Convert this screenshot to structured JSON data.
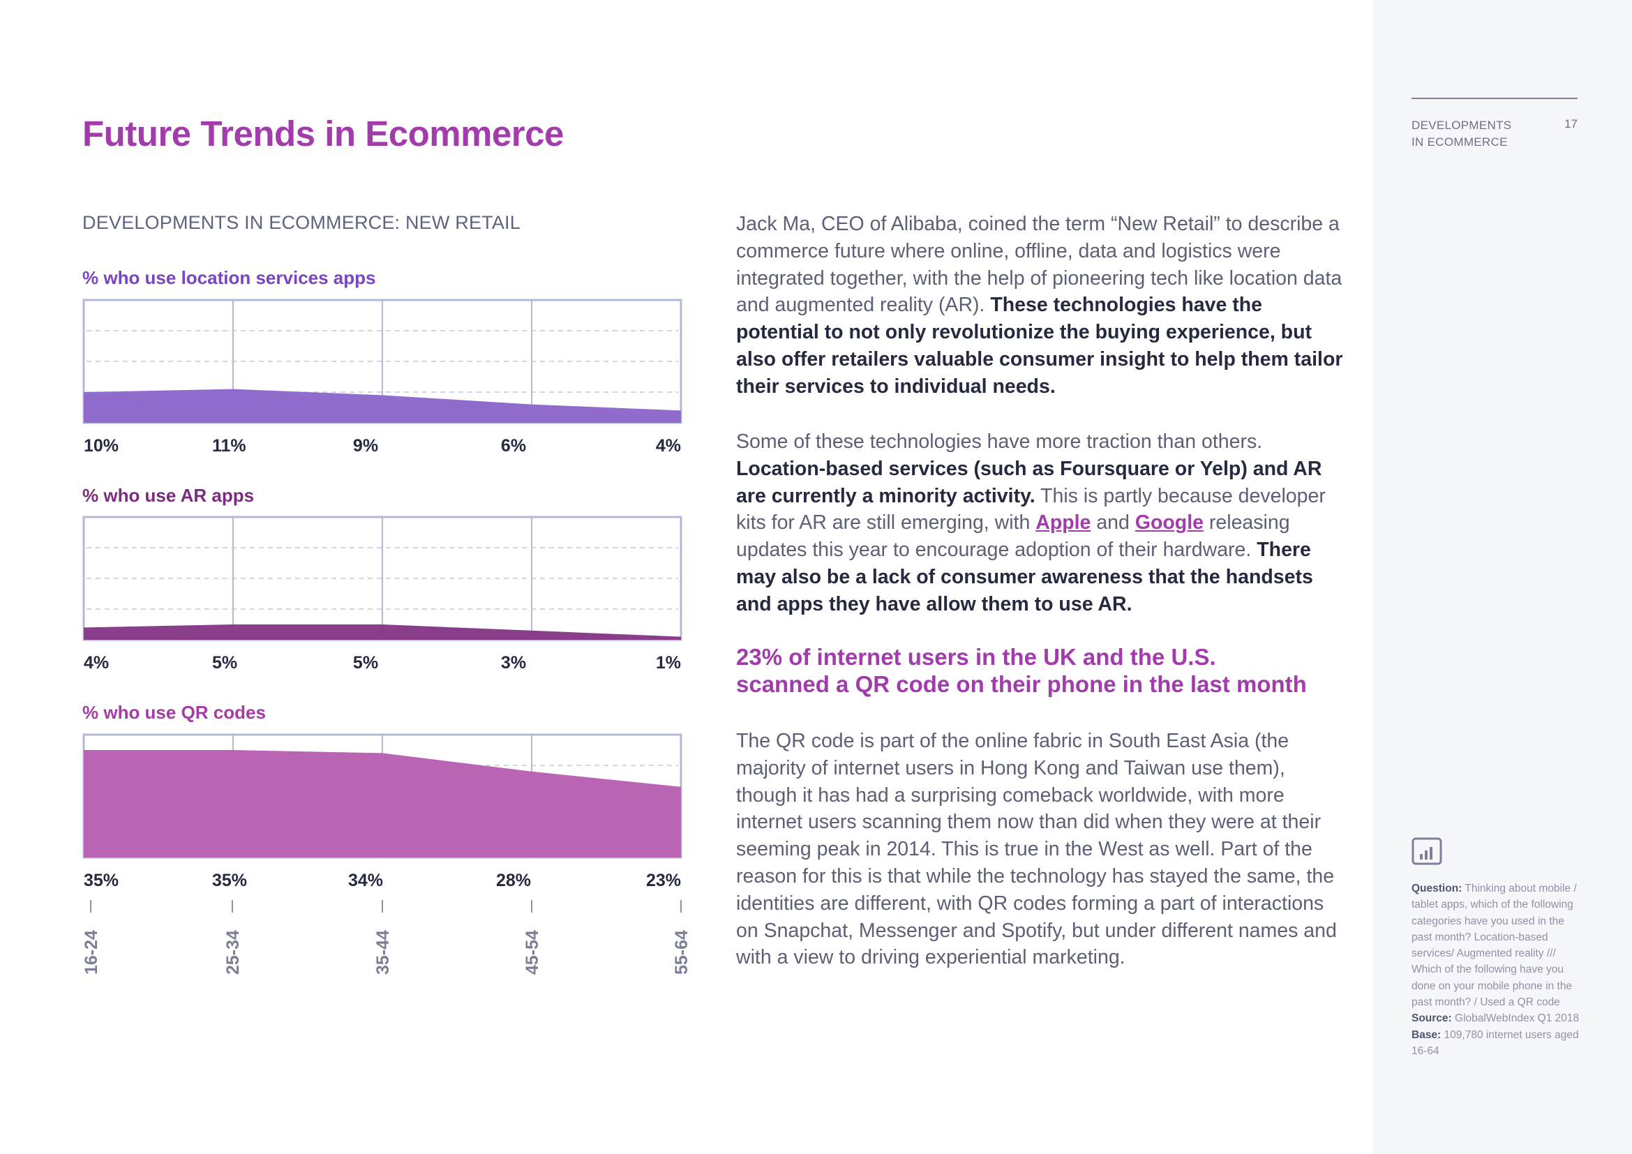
{
  "page": {
    "title": "Future Trends in Ecommerce",
    "section_heading": "DEVELOPMENTS IN ECOMMERCE: NEW RETAIL",
    "sidebar": {
      "section_line1": "DEVELOPMENTS",
      "section_line2": "IN ECOMMERCE",
      "page_number": "17"
    }
  },
  "body": {
    "p1_a": "Jack Ma, CEO of Alibaba, coined the term “New Retail” to describe a commerce future where online, offline, data and logistics were integrated together, with the help of pioneering tech like location data and augmented reality (AR).",
    "p1_b": "These technologies have the potential to not only revolutionize the buying experience, but also offer retailers valuable consumer insight to help them tailor their services to individual needs.",
    "p2_a": "Some of these technologies have more traction than others.",
    "p2_b": "Location-based services (such as Foursquare or Yelp) and AR are currently a minority activity.",
    "p2_c": "This is partly because developer kits for AR are still emerging, with",
    "link_apple": "Apple",
    "p2_d": "and",
    "link_google": "Google",
    "p2_e": "releasing updates this year to encourage adoption of their hardware.",
    "p2_f": "There may also be a lack of consumer awareness that the handsets and apps they have allow them to use AR.",
    "pull_quote_line1": "23% of internet users in the UK and the U.S.",
    "pull_quote_line2": "scanned a QR code on their phone in the last month",
    "p3": "The QR code is part of the online fabric in South East Asia (the majority of internet users in Hong Kong and Taiwan use them), though it has had a surprising comeback worldwide, with more internet users scanning them now than did when they were at their seeming peak in 2014. This is true in the West as well. Part of the reason for this is that while the technology has stayed the same, the identities are different, with QR codes forming a part of interactions on Snapchat, Messenger and Spotify, but under different names and with a view to driving experiential marketing."
  },
  "note": {
    "question_label": "Question:",
    "question_text": "Thinking about mobile / tablet apps, which of the following categories have you used in the past month? Location-based services/ Augmented reality /// Which of the following have you done on your mobile phone in the past month? / Used a QR code",
    "source_label": "Source:",
    "source_text": "GlobalWebIndex Q1 2018",
    "base_label": "Base:",
    "base_text": "109,780 internet users aged 16-64"
  },
  "colors": {
    "brand": "#a23bab",
    "location": "#8e6acc",
    "ar": "#863a86",
    "qr": "#b961b2"
  },
  "chart_data": [
    {
      "type": "area",
      "title": "% who use location services apps",
      "categories": [
        "16-24",
        "25-34",
        "35-44",
        "45-54",
        "55-64"
      ],
      "values": [
        10,
        11,
        9,
        6,
        4
      ],
      "value_labels": [
        "10%",
        "11%",
        "9%",
        "6%",
        "4%"
      ],
      "unit": "%",
      "ylim": [
        0,
        40
      ],
      "grid": true
    },
    {
      "type": "area",
      "title": "% who use AR apps",
      "categories": [
        "16-24",
        "25-34",
        "35-44",
        "45-54",
        "55-64"
      ],
      "values": [
        4,
        5,
        5,
        3,
        1
      ],
      "value_labels": [
        "4%",
        "5%",
        "5%",
        "3%",
        "1%"
      ],
      "unit": "%",
      "ylim": [
        0,
        40
      ],
      "grid": true
    },
    {
      "type": "area",
      "title": "% who use QR codes",
      "categories": [
        "16-24",
        "25-34",
        "35-44",
        "45-54",
        "55-64"
      ],
      "values": [
        35,
        35,
        34,
        28,
        23
      ],
      "value_labels": [
        "35%",
        "35%",
        "34%",
        "28%",
        "23%"
      ],
      "unit": "%",
      "ylim": [
        0,
        40
      ],
      "grid": true
    }
  ]
}
